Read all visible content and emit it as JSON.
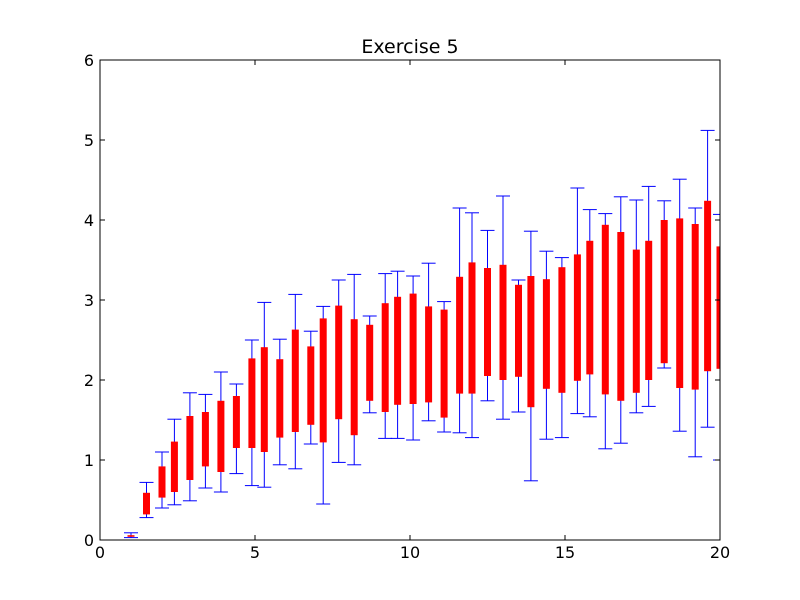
{
  "chart_data": {
    "type": "boxplot",
    "title": "Exercise 5",
    "xlabel": "",
    "ylabel": "",
    "xlim": [
      0,
      20
    ],
    "ylim": [
      0,
      6
    ],
    "x_ticks": [
      "0",
      "5",
      "10",
      "15",
      "20"
    ],
    "y_ticks": [
      "0",
      "1",
      "2",
      "3",
      "4",
      "5",
      "6"
    ],
    "grid": false,
    "box_color": "#ff0000",
    "whisker_color": "#0000ff",
    "boxes": [
      {
        "x": 1.0,
        "low": 0.03,
        "q1": 0.04,
        "q3": 0.06,
        "high": 0.09
      },
      {
        "x": 1.5,
        "low": 0.28,
        "q1": 0.32,
        "q3": 0.59,
        "high": 0.72
      },
      {
        "x": 2.0,
        "low": 0.4,
        "q1": 0.53,
        "q3": 0.92,
        "high": 1.1
      },
      {
        "x": 2.4,
        "low": 0.44,
        "q1": 0.6,
        "q3": 1.23,
        "high": 1.51
      },
      {
        "x": 2.9,
        "low": 0.49,
        "q1": 0.75,
        "q3": 1.55,
        "high": 1.84
      },
      {
        "x": 3.4,
        "low": 0.65,
        "q1": 0.92,
        "q3": 1.6,
        "high": 1.82
      },
      {
        "x": 3.9,
        "low": 0.6,
        "q1": 0.85,
        "q3": 1.74,
        "high": 2.1
      },
      {
        "x": 4.4,
        "low": 0.83,
        "q1": 1.15,
        "q3": 1.8,
        "high": 1.95
      },
      {
        "x": 4.9,
        "low": 0.68,
        "q1": 1.15,
        "q3": 2.27,
        "high": 2.5
      },
      {
        "x": 5.3,
        "low": 0.66,
        "q1": 1.1,
        "q3": 2.41,
        "high": 2.97
      },
      {
        "x": 5.8,
        "low": 0.94,
        "q1": 1.28,
        "q3": 2.26,
        "high": 2.51
      },
      {
        "x": 6.3,
        "low": 0.89,
        "q1": 1.35,
        "q3": 2.63,
        "high": 3.07
      },
      {
        "x": 6.8,
        "low": 1.2,
        "q1": 1.44,
        "q3": 2.42,
        "high": 2.61
      },
      {
        "x": 7.2,
        "low": 0.45,
        "q1": 1.22,
        "q3": 2.77,
        "high": 2.92
      },
      {
        "x": 7.7,
        "low": 0.97,
        "q1": 1.51,
        "q3": 2.93,
        "high": 3.25
      },
      {
        "x": 8.2,
        "low": 0.94,
        "q1": 1.31,
        "q3": 2.76,
        "high": 3.32
      },
      {
        "x": 8.7,
        "low": 1.59,
        "q1": 1.74,
        "q3": 2.69,
        "high": 2.8
      },
      {
        "x": 9.2,
        "low": 1.27,
        "q1": 1.6,
        "q3": 2.96,
        "high": 3.33
      },
      {
        "x": 9.6,
        "low": 1.27,
        "q1": 1.69,
        "q3": 3.04,
        "high": 3.36
      },
      {
        "x": 10.1,
        "low": 1.25,
        "q1": 1.7,
        "q3": 3.08,
        "high": 3.3
      },
      {
        "x": 10.6,
        "low": 1.49,
        "q1": 1.72,
        "q3": 2.92,
        "high": 3.46
      },
      {
        "x": 11.1,
        "low": 1.35,
        "q1": 1.53,
        "q3": 2.88,
        "high": 2.98
      },
      {
        "x": 11.6,
        "low": 1.34,
        "q1": 1.83,
        "q3": 3.29,
        "high": 4.15
      },
      {
        "x": 12.0,
        "low": 1.28,
        "q1": 1.83,
        "q3": 3.47,
        "high": 4.09
      },
      {
        "x": 12.5,
        "low": 1.74,
        "q1": 2.05,
        "q3": 3.4,
        "high": 3.87
      },
      {
        "x": 13.0,
        "low": 1.51,
        "q1": 2.0,
        "q3": 3.44,
        "high": 4.3
      },
      {
        "x": 13.5,
        "low": 1.6,
        "q1": 2.04,
        "q3": 3.19,
        "high": 3.25
      },
      {
        "x": 13.9,
        "low": 0.74,
        "q1": 1.66,
        "q3": 3.3,
        "high": 3.86
      },
      {
        "x": 14.4,
        "low": 1.26,
        "q1": 1.89,
        "q3": 3.26,
        "high": 3.61
      },
      {
        "x": 14.9,
        "low": 1.28,
        "q1": 1.84,
        "q3": 3.41,
        "high": 3.53
      },
      {
        "x": 15.4,
        "low": 1.58,
        "q1": 1.99,
        "q3": 3.57,
        "high": 4.4
      },
      {
        "x": 15.8,
        "low": 1.54,
        "q1": 2.07,
        "q3": 3.74,
        "high": 4.13
      },
      {
        "x": 16.3,
        "low": 1.14,
        "q1": 1.82,
        "q3": 3.94,
        "high": 4.08
      },
      {
        "x": 16.8,
        "low": 1.21,
        "q1": 1.74,
        "q3": 3.85,
        "high": 4.29
      },
      {
        "x": 17.3,
        "low": 1.59,
        "q1": 1.84,
        "q3": 3.63,
        "high": 4.25
      },
      {
        "x": 17.7,
        "low": 1.67,
        "q1": 2.0,
        "q3": 3.74,
        "high": 4.42
      },
      {
        "x": 18.2,
        "low": 2.15,
        "q1": 2.21,
        "q3": 4.0,
        "high": 4.24
      },
      {
        "x": 18.7,
        "low": 1.36,
        "q1": 1.9,
        "q3": 4.02,
        "high": 4.51
      },
      {
        "x": 19.2,
        "low": 1.04,
        "q1": 1.88,
        "q3": 3.95,
        "high": 4.15
      },
      {
        "x": 19.6,
        "low": 1.41,
        "q1": 2.11,
        "q3": 4.24,
        "high": 5.12
      },
      {
        "x": 20.0,
        "low": 1.0,
        "q1": 2.14,
        "q3": 3.67,
        "high": 4.07
      }
    ]
  }
}
